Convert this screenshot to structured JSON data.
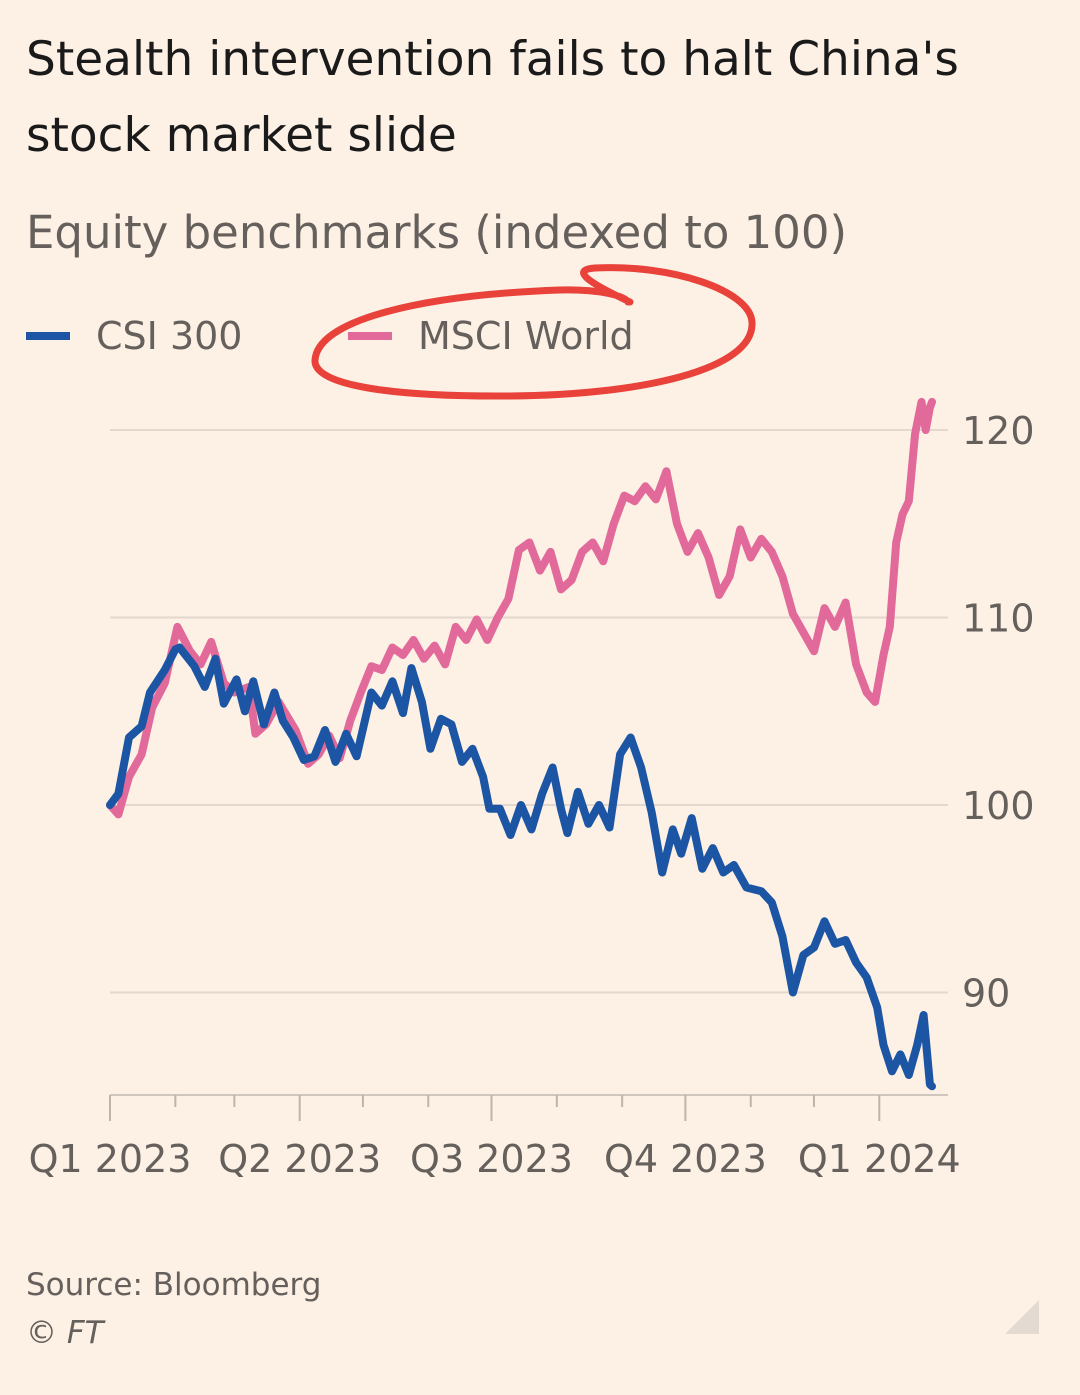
{
  "header": {
    "title": "Stealth intervention fails to halt China's stock market slide",
    "subtitle": "Equity benchmarks (indexed to 100)"
  },
  "legend": {
    "items": [
      {
        "label": "CSI 300",
        "color": "#1B55A3"
      },
      {
        "label": "MSCI World",
        "color": "#E26A9B"
      }
    ]
  },
  "footer": {
    "source": "Source: Bloomberg",
    "credit": "© FT"
  },
  "colors": {
    "background": "#FDF1E6",
    "grid": "#E3D8CD",
    "axis_text": "#66605c",
    "annotation": "#E8423A"
  },
  "icons": {
    "corner": "triangle-corner-icon"
  },
  "chart_data": {
    "type": "line",
    "title": "Stealth intervention fails to halt China's stock market slide",
    "subtitle": "Equity benchmarks (indexed to 100)",
    "xlabel": "",
    "ylabel": "",
    "x_domain": [
      "2023-01-01",
      "2024-01-26"
    ],
    "ylim": [
      84.5,
      123
    ],
    "yticks": [
      90,
      100,
      110,
      120
    ],
    "xticks": [
      {
        "date": "2023-01-01",
        "label": "Q1 2023"
      },
      {
        "date": "2023-04-01",
        "label": "Q2 2023"
      },
      {
        "date": "2023-07-01",
        "label": "Q3 2023"
      },
      {
        "date": "2023-10-01",
        "label": "Q4 2023"
      },
      {
        "date": "2024-01-01",
        "label": "Q1 2024"
      }
    ],
    "minor_xticks": [
      "2023-02-01",
      "2023-03-01",
      "2023-05-01",
      "2023-06-01",
      "2023-08-01",
      "2023-09-01",
      "2023-11-01",
      "2023-12-01"
    ],
    "grid": true,
    "legend_position": "top-left",
    "series": [
      {
        "name": "CSI 300",
        "color": "#1B55A3",
        "points": [
          [
            "2023-01-01",
            100.0
          ],
          [
            "2023-01-05",
            100.6
          ],
          [
            "2023-01-10",
            103.6
          ],
          [
            "2023-01-16",
            104.2
          ],
          [
            "2023-01-20",
            106.0
          ],
          [
            "2023-01-27",
            107.2
          ],
          [
            "2023-02-01",
            108.3
          ],
          [
            "2023-02-03",
            108.4
          ],
          [
            "2023-02-10",
            107.4
          ],
          [
            "2023-02-15",
            106.3
          ],
          [
            "2023-02-20",
            107.8
          ],
          [
            "2023-02-24",
            105.4
          ],
          [
            "2023-03-02",
            106.7
          ],
          [
            "2023-03-06",
            105.0
          ],
          [
            "2023-03-10",
            106.6
          ],
          [
            "2023-03-15",
            104.3
          ],
          [
            "2023-03-20",
            106.0
          ],
          [
            "2023-03-24",
            104.5
          ],
          [
            "2023-03-29",
            103.6
          ],
          [
            "2023-04-03",
            102.4
          ],
          [
            "2023-04-08",
            102.6
          ],
          [
            "2023-04-13",
            104.0
          ],
          [
            "2023-04-18",
            102.3
          ],
          [
            "2023-04-23",
            103.8
          ],
          [
            "2023-04-28",
            102.6
          ],
          [
            "2023-05-05",
            106.0
          ],
          [
            "2023-05-10",
            105.3
          ],
          [
            "2023-05-15",
            106.6
          ],
          [
            "2023-05-20",
            104.9
          ],
          [
            "2023-05-24",
            107.3
          ],
          [
            "2023-05-29",
            105.5
          ],
          [
            "2023-06-02",
            103.0
          ],
          [
            "2023-06-07",
            104.6
          ],
          [
            "2023-06-12",
            104.3
          ],
          [
            "2023-06-17",
            102.3
          ],
          [
            "2023-06-22",
            103.0
          ],
          [
            "2023-06-27",
            101.5
          ],
          [
            "2023-06-30",
            99.8
          ],
          [
            "2023-07-05",
            99.8
          ],
          [
            "2023-07-10",
            98.4
          ],
          [
            "2023-07-15",
            100.0
          ],
          [
            "2023-07-20",
            98.7
          ],
          [
            "2023-07-25",
            100.6
          ],
          [
            "2023-07-30",
            102.0
          ],
          [
            "2023-08-03",
            99.8
          ],
          [
            "2023-08-06",
            98.5
          ],
          [
            "2023-08-11",
            100.7
          ],
          [
            "2023-08-16",
            99.0
          ],
          [
            "2023-08-21",
            100.0
          ],
          [
            "2023-08-26",
            98.8
          ],
          [
            "2023-08-31",
            102.7
          ],
          [
            "2023-09-05",
            103.6
          ],
          [
            "2023-09-10",
            102.0
          ],
          [
            "2023-09-15",
            99.6
          ],
          [
            "2023-09-20",
            96.4
          ],
          [
            "2023-09-25",
            98.7
          ],
          [
            "2023-09-29",
            97.4
          ],
          [
            "2023-10-04",
            99.3
          ],
          [
            "2023-10-09",
            96.6
          ],
          [
            "2023-10-14",
            97.7
          ],
          [
            "2023-10-19",
            96.4
          ],
          [
            "2023-10-24",
            96.8
          ],
          [
            "2023-10-30",
            95.6
          ],
          [
            "2023-11-06",
            95.4
          ],
          [
            "2023-11-11",
            94.8
          ],
          [
            "2023-11-16",
            93.0
          ],
          [
            "2023-11-21",
            90.0
          ],
          [
            "2023-11-26",
            92.0
          ],
          [
            "2023-12-01",
            92.4
          ],
          [
            "2023-12-06",
            93.8
          ],
          [
            "2023-12-11",
            92.6
          ],
          [
            "2023-12-16",
            92.8
          ],
          [
            "2023-12-21",
            91.6
          ],
          [
            "2023-12-26",
            90.8
          ],
          [
            "2023-12-31",
            89.2
          ],
          [
            "2024-01-03",
            87.2
          ],
          [
            "2024-01-07",
            85.8
          ],
          [
            "2024-01-11",
            86.7
          ],
          [
            "2024-01-15",
            85.6
          ],
          [
            "2024-01-19",
            87.2
          ],
          [
            "2024-01-22",
            88.8
          ],
          [
            "2024-01-25",
            85.1
          ],
          [
            "2024-01-26",
            85.0
          ]
        ]
      },
      {
        "name": "MSCI World",
        "color": "#E26A9B",
        "points": [
          [
            "2023-01-01",
            100.0
          ],
          [
            "2023-01-05",
            99.5
          ],
          [
            "2023-01-10",
            101.5
          ],
          [
            "2023-01-16",
            102.7
          ],
          [
            "2023-01-21",
            105.2
          ],
          [
            "2023-01-27",
            106.5
          ],
          [
            "2023-02-02",
            109.5
          ],
          [
            "2023-02-08",
            108.2
          ],
          [
            "2023-02-13",
            107.5
          ],
          [
            "2023-02-18",
            108.7
          ],
          [
            "2023-02-24",
            106.5
          ],
          [
            "2023-03-01",
            106.0
          ],
          [
            "2023-03-08",
            106.3
          ],
          [
            "2023-03-11",
            103.8
          ],
          [
            "2023-03-16",
            104.3
          ],
          [
            "2023-03-22",
            105.5
          ],
          [
            "2023-03-30",
            104.0
          ],
          [
            "2023-04-05",
            102.2
          ],
          [
            "2023-04-10",
            102.7
          ],
          [
            "2023-04-15",
            103.7
          ],
          [
            "2023-04-20",
            102.5
          ],
          [
            "2023-04-25",
            104.5
          ],
          [
            "2023-04-30",
            106.0
          ],
          [
            "2023-05-05",
            107.4
          ],
          [
            "2023-05-10",
            107.2
          ],
          [
            "2023-05-15",
            108.4
          ],
          [
            "2023-05-20",
            108.0
          ],
          [
            "2023-05-25",
            108.8
          ],
          [
            "2023-05-30",
            107.8
          ],
          [
            "2023-06-04",
            108.5
          ],
          [
            "2023-06-09",
            107.5
          ],
          [
            "2023-06-14",
            109.5
          ],
          [
            "2023-06-19",
            108.8
          ],
          [
            "2023-06-24",
            109.9
          ],
          [
            "2023-06-29",
            108.8
          ],
          [
            "2023-07-04",
            110.0
          ],
          [
            "2023-07-09",
            111.0
          ],
          [
            "2023-07-14",
            113.6
          ],
          [
            "2023-07-19",
            114.0
          ],
          [
            "2023-07-24",
            112.5
          ],
          [
            "2023-07-29",
            113.5
          ],
          [
            "2023-08-03",
            111.5
          ],
          [
            "2023-08-08",
            112.0
          ],
          [
            "2023-08-13",
            113.5
          ],
          [
            "2023-08-18",
            114.0
          ],
          [
            "2023-08-23",
            113.0
          ],
          [
            "2023-08-28",
            115.0
          ],
          [
            "2023-09-02",
            116.5
          ],
          [
            "2023-09-07",
            116.2
          ],
          [
            "2023-09-12",
            117.0
          ],
          [
            "2023-09-17",
            116.3
          ],
          [
            "2023-09-22",
            117.8
          ],
          [
            "2023-09-27",
            115.0
          ],
          [
            "2023-10-02",
            113.5
          ],
          [
            "2023-10-07",
            114.5
          ],
          [
            "2023-10-12",
            113.2
          ],
          [
            "2023-10-17",
            111.2
          ],
          [
            "2023-10-22",
            112.2
          ],
          [
            "2023-10-27",
            114.7
          ],
          [
            "2023-11-01",
            113.2
          ],
          [
            "2023-11-06",
            114.2
          ],
          [
            "2023-11-11",
            113.5
          ],
          [
            "2023-11-16",
            112.2
          ],
          [
            "2023-11-21",
            110.2
          ],
          [
            "2023-11-26",
            109.2
          ],
          [
            "2023-12-01",
            108.2
          ],
          [
            "2023-12-06",
            110.5
          ],
          [
            "2023-12-11",
            109.5
          ],
          [
            "2023-12-16",
            110.8
          ],
          [
            "2023-12-21",
            107.5
          ],
          [
            "2023-12-26",
            106.0
          ],
          [
            "2023-12-30",
            105.5
          ],
          [
            "2024-01-03",
            108.0
          ],
          [
            "2024-01-06",
            109.5
          ],
          [
            "2024-01-09",
            114.0
          ],
          [
            "2024-01-12",
            115.5
          ],
          [
            "2024-01-15",
            116.2
          ],
          [
            "2024-01-18",
            119.8
          ],
          [
            "2024-01-21",
            121.5
          ],
          [
            "2024-01-23",
            120.0
          ],
          [
            "2024-01-25",
            121.2
          ],
          [
            "2024-01-26",
            121.5
          ]
        ]
      }
    ]
  }
}
